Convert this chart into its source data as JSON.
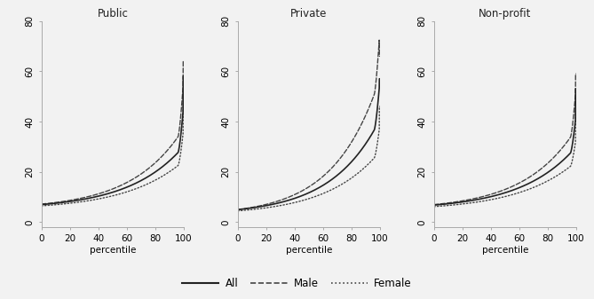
{
  "panels": [
    "Public",
    "Private",
    "Non-profit"
  ],
  "xlabel": "percentile",
  "x_ticks": [
    0,
    20,
    40,
    60,
    80,
    100
  ],
  "y_ticks": [
    0,
    20,
    40,
    60,
    80
  ],
  "ylim": [
    -2,
    80
  ],
  "xlim": [
    0,
    100
  ],
  "line_styles": {
    "All": {
      "color": "#222222",
      "linestyle": "-",
      "linewidth": 1.2
    },
    "Male": {
      "color": "#444444",
      "linestyle": "--",
      "linewidth": 1.0
    },
    "Female": {
      "color": "#444444",
      "linestyle": ":",
      "linewidth": 1.0
    }
  },
  "legend_labels": [
    "All",
    "Male",
    "Female"
  ],
  "background_color": "#f2f2f2",
  "figsize": [
    6.69,
    3.37
  ],
  "dpi": 100,
  "curves": {
    "Public": {
      "All": {
        "base": 7.0,
        "scale": 38,
        "coef": 1.8,
        "spike_x": 99.5,
        "spike_y": 58,
        "top_start": 96,
        "top_y": 44
      },
      "Male": {
        "base": 7.2,
        "scale": 36,
        "coef": 2.0,
        "spike_x": 99.5,
        "spike_y": 64,
        "top_start": 96,
        "top_y": 47
      },
      "Female": {
        "base": 6.5,
        "scale": 40,
        "coef": 1.6,
        "spike_x": 99.5,
        "spike_y": 52,
        "top_start": 96,
        "top_y": 41
      }
    },
    "Private": {
      "All": {
        "base": 5.0,
        "scale": 34,
        "coef": 2.0,
        "spike_x": 99.5,
        "spike_y": 57,
        "top_start": 96,
        "top_y": 44
      },
      "Male": {
        "base": 5.0,
        "scale": 32,
        "coef": 2.4,
        "spike_x": 99.5,
        "spike_y": 66,
        "top_start": 96,
        "top_y": 50
      },
      "Female": {
        "base": 4.5,
        "scale": 37,
        "coef": 1.7,
        "spike_x": 99.5,
        "spike_y": 46,
        "top_start": 96,
        "top_y": 37
      }
    },
    "Non-profit": {
      "All": {
        "base": 6.8,
        "scale": 38,
        "coef": 1.8,
        "spike_x": 99.5,
        "spike_y": 53,
        "top_start": 96,
        "top_y": 42
      },
      "Male": {
        "base": 7.0,
        "scale": 36,
        "coef": 2.0,
        "spike_x": 99.5,
        "spike_y": 59,
        "top_start": 96,
        "top_y": 45
      },
      "Female": {
        "base": 6.2,
        "scale": 40,
        "coef": 1.6,
        "spike_x": 99.5,
        "spike_y": 47,
        "top_start": 96,
        "top_y": 39
      }
    }
  }
}
